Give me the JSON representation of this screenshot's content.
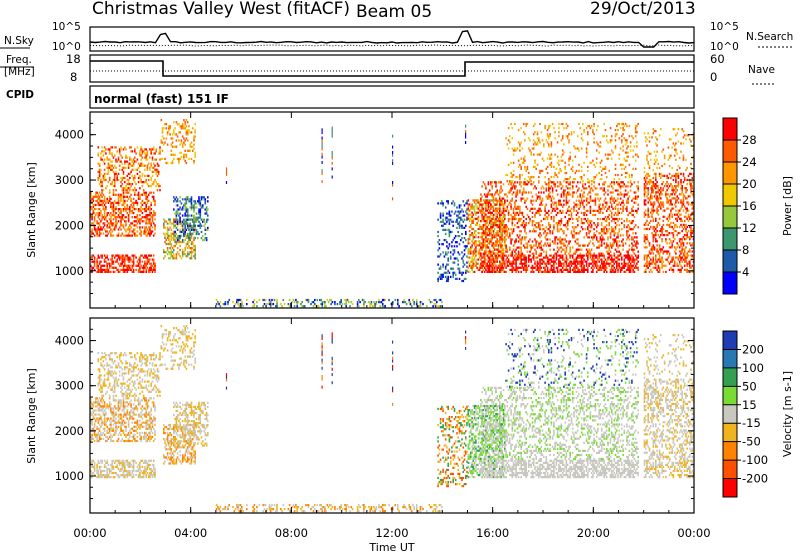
{
  "header": {
    "station": "Christmas Valley West (fitACF)",
    "beam": "Beam 05",
    "date": "29/Oct/2013"
  },
  "top_panels": {
    "nsky_label": "N.Sky",
    "nsky_ticks": [
      "10^5",
      "10^0"
    ],
    "nsearch_label": "N.Search",
    "nsearch_ticks": [
      "10^5",
      "10^0"
    ],
    "freq_label_1": "Freq.",
    "freq_label_2": "[MHz]",
    "freq_ticks": [
      "18",
      "8"
    ],
    "nave_label": "Nave",
    "nave_ticks": [
      "60",
      "0"
    ],
    "cpid_label": "CPID",
    "cpid_value": "normal (fast) 151 IF"
  },
  "chart_data": [
    {
      "type": "heatmap",
      "name": "power",
      "ylabel": "Slant Range [km]",
      "xlabel": "",
      "colorbar_label": "Power [dB]",
      "colorbar_ticks": [
        "28",
        "24",
        "20",
        "16",
        "12",
        "8",
        "4"
      ],
      "colorbar_colors": [
        "#ff0000",
        "#ff5a00",
        "#ff9600",
        "#f0c800",
        "#96c83c",
        "#3c966e",
        "#1e5aaa",
        "#0000ff"
      ],
      "yticks": [
        "4000",
        "3000",
        "2000",
        "1000"
      ],
      "ylim": [
        180,
        4500
      ],
      "xlim": [
        "00:00",
        "24:00"
      ]
    },
    {
      "type": "heatmap",
      "name": "velocity",
      "ylabel": "Slant Range [km]",
      "xlabel": "Time UT",
      "colorbar_label": "Velocity [m s-1]",
      "colorbar_ticks": [
        "200",
        "100",
        "50",
        "15",
        "-15",
        "-50",
        "-100",
        "-200"
      ],
      "colorbar_colors": [
        "#1e3cb4",
        "#2878b4",
        "#32a050",
        "#78dc32",
        "#c8c8c0",
        "#f0b41e",
        "#ff8200",
        "#ff5000",
        "#ff0000"
      ],
      "yticks": [
        "4000",
        "3000",
        "2000",
        "1000"
      ],
      "xticks": [
        "00:00",
        "04:00",
        "08:00",
        "12:00",
        "16:00",
        "20:00",
        "00:00"
      ],
      "ylim": [
        180,
        4500
      ],
      "xlim": [
        "00:00",
        "24:00"
      ]
    }
  ]
}
